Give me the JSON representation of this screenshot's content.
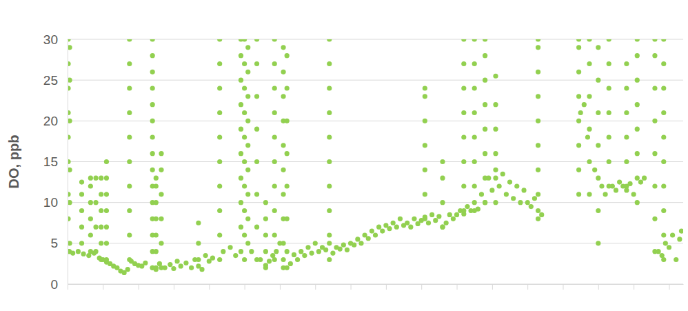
{
  "chart_data": {
    "type": "scatter",
    "ylabel": "DO, ppb",
    "color": "#92d050",
    "marker": "circle",
    "grid": true,
    "tick_labels": "y",
    "xlim": [
      0,
      17.4
    ],
    "xticks": [
      0,
      1,
      2,
      3,
      4,
      5,
      6,
      7,
      8,
      9,
      10,
      11,
      12,
      13,
      14,
      15,
      16,
      17
    ],
    "ylim": [
      0,
      30
    ],
    "yticks": [
      0,
      5,
      10,
      15,
      20,
      25,
      30
    ],
    "x": [
      0.05,
      0.15,
      0.3,
      0.45,
      0.6,
      0.75,
      0.9,
      1.0,
      1.1,
      1.2,
      1.3,
      1.4,
      1.5,
      1.6,
      1.7,
      1.8,
      1.9,
      2.0,
      2.1,
      2.2,
      2.4,
      2.5,
      2.6,
      2.75,
      2.9,
      3.0,
      3.1,
      3.2,
      3.35,
      3.5,
      3.6,
      3.7,
      3.8,
      3.9,
      4.0,
      4.1,
      4.4,
      4.6,
      4.75,
      5.2,
      5.45,
      5.6,
      5.7,
      5.8,
      5.9,
      6.0,
      6.1,
      6.2,
      6.3,
      6.4,
      6.5,
      6.6,
      6.7,
      6.8,
      6.9,
      7.0,
      7.1,
      7.2,
      7.3,
      7.4,
      7.5,
      7.6,
      7.7,
      7.8,
      7.9,
      8.0,
      8.1,
      8.2,
      8.3,
      8.4,
      8.5,
      8.6,
      8.7,
      8.8,
      8.9,
      9.0,
      9.1,
      9.2,
      9.3,
      9.4,
      9.5,
      9.6,
      9.7,
      9.8,
      9.9,
      10.0,
      10.1,
      10.2,
      10.3,
      10.4,
      10.5,
      10.6,
      10.7,
      10.8,
      10.9,
      11.0,
      11.1,
      11.2,
      11.3,
      11.4,
      11.5,
      11.6,
      11.7,
      11.8,
      11.9,
      12.0,
      12.1,
      12.2,
      12.3,
      12.4,
      12.5,
      12.6,
      12.7,
      12.8,
      12.9,
      13.0,
      13.1,
      13.2,
      13.3,
      13.4,
      14.5,
      14.6,
      14.7,
      14.9,
      15.1,
      15.2,
      15.4,
      15.5,
      15.6,
      15.7,
      15.8,
      15.9,
      16.0,
      16.2,
      16.3,
      16.7,
      16.8,
      16.9,
      17.0,
      17.1,
      17.2,
      17.3,
      17.35,
      0.02,
      0.02,
      0.02,
      0.02,
      0.02,
      0.02,
      0.02,
      0.02,
      0.02,
      0.06,
      0.06,
      0.06,
      0.06,
      0.06,
      0.06,
      0.4,
      0.4,
      0.4,
      0.4,
      0.4,
      0.65,
      0.65,
      0.65,
      0.65,
      0.65,
      0.65,
      0.8,
      0.8,
      0.8,
      0.8,
      0.95,
      0.95,
      0.95,
      0.95,
      0.95,
      0.95,
      1.1,
      1.1,
      1.1,
      1.1,
      1.1,
      1.1,
      1.1,
      1.75,
      1.75,
      1.75,
      1.75,
      1.75,
      1.75,
      1.75,
      1.75,
      1.75,
      1.75,
      2.4,
      2.4,
      2.4,
      2.4,
      2.4,
      2.4,
      2.4,
      2.4,
      2.4,
      2.4,
      2.4,
      2.4,
      2.4,
      2.4,
      2.4,
      2.5,
      2.5,
      2.5,
      2.5,
      2.5,
      2.5,
      2.5,
      2.65,
      2.65,
      2.65,
      2.65,
      2.65,
      2.65,
      3.7,
      3.7,
      3.7,
      4.3,
      4.3,
      4.3,
      4.3,
      4.3,
      4.3,
      4.3,
      4.3,
      4.3,
      4.3,
      4.9,
      4.9,
      4.9,
      4.9,
      4.9,
      4.9,
      4.9,
      4.9,
      4.9,
      4.9,
      5.0,
      5.0,
      5.0,
      5.0,
      5.0,
      5.0,
      5.0,
      5.0,
      5.0,
      5.0,
      5.1,
      5.1,
      5.1,
      5.1,
      5.1,
      5.1,
      5.1,
      5.1,
      5.1,
      5.35,
      5.35,
      5.35,
      5.35,
      5.35,
      5.35,
      5.35,
      5.35,
      5.6,
      5.6,
      5.6,
      5.6,
      5.6,
      5.85,
      5.85,
      5.85,
      5.85,
      5.85,
      5.85,
      5.85,
      5.85,
      5.85,
      5.85,
      6.1,
      6.1,
      6.1,
      6.1,
      6.1,
      6.1,
      6.1,
      6.1,
      6.1,
      6.1,
      6.2,
      6.2,
      6.2,
      6.2,
      6.2,
      6.2,
      6.2,
      7.4,
      7.4,
      7.4,
      7.4,
      7.4,
      7.4,
      7.4,
      7.4,
      7.4,
      7.4,
      10.1,
      10.1,
      10.1,
      10.1,
      10.1,
      10.1,
      10.1,
      10.6,
      10.6,
      10.6,
      10.6,
      11.2,
      11.2,
      11.2,
      11.2,
      11.2,
      11.2,
      11.2,
      11.2,
      11.5,
      11.5,
      11.5,
      11.5,
      11.5,
      11.5,
      11.5,
      11.5,
      11.8,
      11.8,
      11.8,
      11.8,
      11.8,
      11.8,
      11.8,
      11.8,
      12.1,
      12.1,
      12.1,
      12.1,
      12.1,
      12.1,
      13.3,
      13.3,
      13.3,
      13.3,
      13.3,
      13.3,
      13.3,
      13.3,
      13.3,
      14.45,
      14.45,
      14.45,
      14.45,
      14.45,
      14.45,
      14.45,
      14.45,
      14.75,
      14.75,
      14.75,
      14.75,
      14.75,
      14.75,
      15.0,
      15.0,
      15.0,
      15.0,
      15.0,
      15.0,
      15.0,
      15.3,
      15.3,
      15.3,
      15.3,
      15.3,
      15.3,
      15.3,
      15.8,
      15.8,
      15.8,
      15.8,
      15.8,
      15.8,
      16.1,
      16.1,
      16.1,
      16.1,
      16.1,
      16.1,
      16.1,
      16.1,
      16.6,
      16.6,
      16.6,
      16.6,
      16.6,
      16.6,
      16.6,
      16.6,
      16.85,
      16.85,
      16.85,
      16.85,
      16.85,
      16.85,
      16.85,
      16.85,
      16.85,
      16.85
    ],
    "values": [
      4,
      3.8,
      4,
      3.7,
      3.5,
      3.8,
      3.2,
      3,
      2.7,
      2.5,
      2.2,
      2,
      1.6,
      1.4,
      1.8,
      2.8,
      2.5,
      2.3,
      2.2,
      2.6,
      2,
      1.8,
      2.5,
      2,
      2.4,
      1.9,
      2.8,
      2.2,
      2.6,
      2,
      3,
      2.2,
      1.8,
      3.5,
      2.8,
      3.2,
      4,
      4.5,
      3.5,
      4,
      3,
      2.3,
      2.8,
      3.5,
      4,
      5,
      3,
      2,
      2.5,
      3.6,
      3,
      4,
      3.5,
      4.5,
      3.8,
      5,
      4,
      4.5,
      4.2,
      5,
      3.8,
      4.5,
      4.3,
      4.8,
      4.2,
      5,
      4.8,
      5.5,
      5,
      6,
      5.6,
      6.5,
      6,
      7,
      6.5,
      7.2,
      6.8,
      7.5,
      7,
      8,
      7.2,
      7.5,
      7,
      8,
      7.4,
      7.8,
      8.2,
      7.5,
      8.5,
      7.8,
      8.3,
      7,
      7.5,
      8.5,
      8,
      8.5,
      9,
      8.6,
      9.5,
      9,
      10,
      9.2,
      11,
      10,
      13,
      11.5,
      14,
      12,
      13.5,
      11,
      12.5,
      10.5,
      12,
      10,
      11.5,
      10,
      9.5,
      10.5,
      9,
      8.5,
      21,
      22,
      18,
      14,
      12,
      11,
      12,
      11.5,
      12.5,
      12,
      11.5,
      12.3,
      11,
      12.5,
      13,
      4,
      3.5,
      5,
      4.5,
      6,
      3,
      5.5,
      6.5,
      4,
      8,
      11,
      15,
      18,
      21,
      24,
      27,
      30,
      5,
      10,
      14,
      20,
      25,
      29,
      5,
      7,
      9,
      11,
      12.5,
      4,
      6,
      8,
      10,
      12,
      13,
      4,
      7,
      10,
      13,
      3,
      5,
      7,
      9,
      11,
      13,
      3,
      5,
      7,
      9,
      11,
      13,
      15,
      3,
      6,
      9,
      12,
      15,
      18,
      21,
      24,
      27,
      30,
      2,
      4,
      6,
      8,
      10,
      12,
      14,
      16,
      18,
      20,
      22,
      24,
      26,
      28,
      30,
      2,
      4,
      6,
      8,
      10,
      12,
      13,
      2,
      5,
      8,
      11,
      14,
      16,
      3,
      5,
      7.5,
      3,
      6,
      9,
      12,
      15,
      18,
      21,
      24,
      27,
      30,
      4,
      7,
      10,
      13,
      16,
      19,
      22,
      25,
      28,
      30,
      3,
      6,
      9,
      12,
      15,
      18,
      21,
      24,
      27,
      30,
      5,
      8,
      11,
      14,
      17,
      20,
      23,
      26,
      29,
      3,
      7,
      11,
      15,
      19,
      23,
      27,
      30,
      2,
      4,
      6,
      8,
      10,
      3,
      6,
      9,
      12,
      15,
      18,
      21,
      24,
      27,
      30,
      2,
      5,
      8,
      11,
      14,
      17,
      20,
      23,
      26,
      29,
      4,
      8,
      12,
      16,
      20,
      24,
      28,
      3,
      6,
      9,
      12,
      15,
      18,
      21,
      24,
      27,
      30,
      8,
      11,
      14,
      17,
      20,
      23,
      24,
      7,
      10,
      13,
      15,
      9,
      12,
      15,
      18,
      21,
      24,
      27,
      30,
      9,
      12,
      15,
      18,
      21,
      24,
      27,
      30,
      10,
      13,
      16,
      19,
      22,
      25,
      28,
      30,
      10,
      13,
      16,
      19,
      22,
      25.5,
      8,
      11,
      14,
      17,
      20,
      23,
      26,
      29,
      30,
      11,
      14,
      17,
      20,
      23,
      26,
      29,
      30,
      11,
      15,
      19,
      23,
      27,
      30,
      5,
      9,
      13,
      17,
      21,
      25,
      29,
      12,
      15,
      18,
      21,
      24,
      27,
      30,
      12,
      15,
      18,
      21,
      24,
      27,
      10,
      13,
      16,
      19,
      22,
      25,
      28,
      30,
      4,
      8,
      12,
      16,
      20,
      24,
      28,
      30,
      3,
      6,
      9,
      12,
      15,
      18,
      21,
      24,
      27,
      30
    ]
  }
}
